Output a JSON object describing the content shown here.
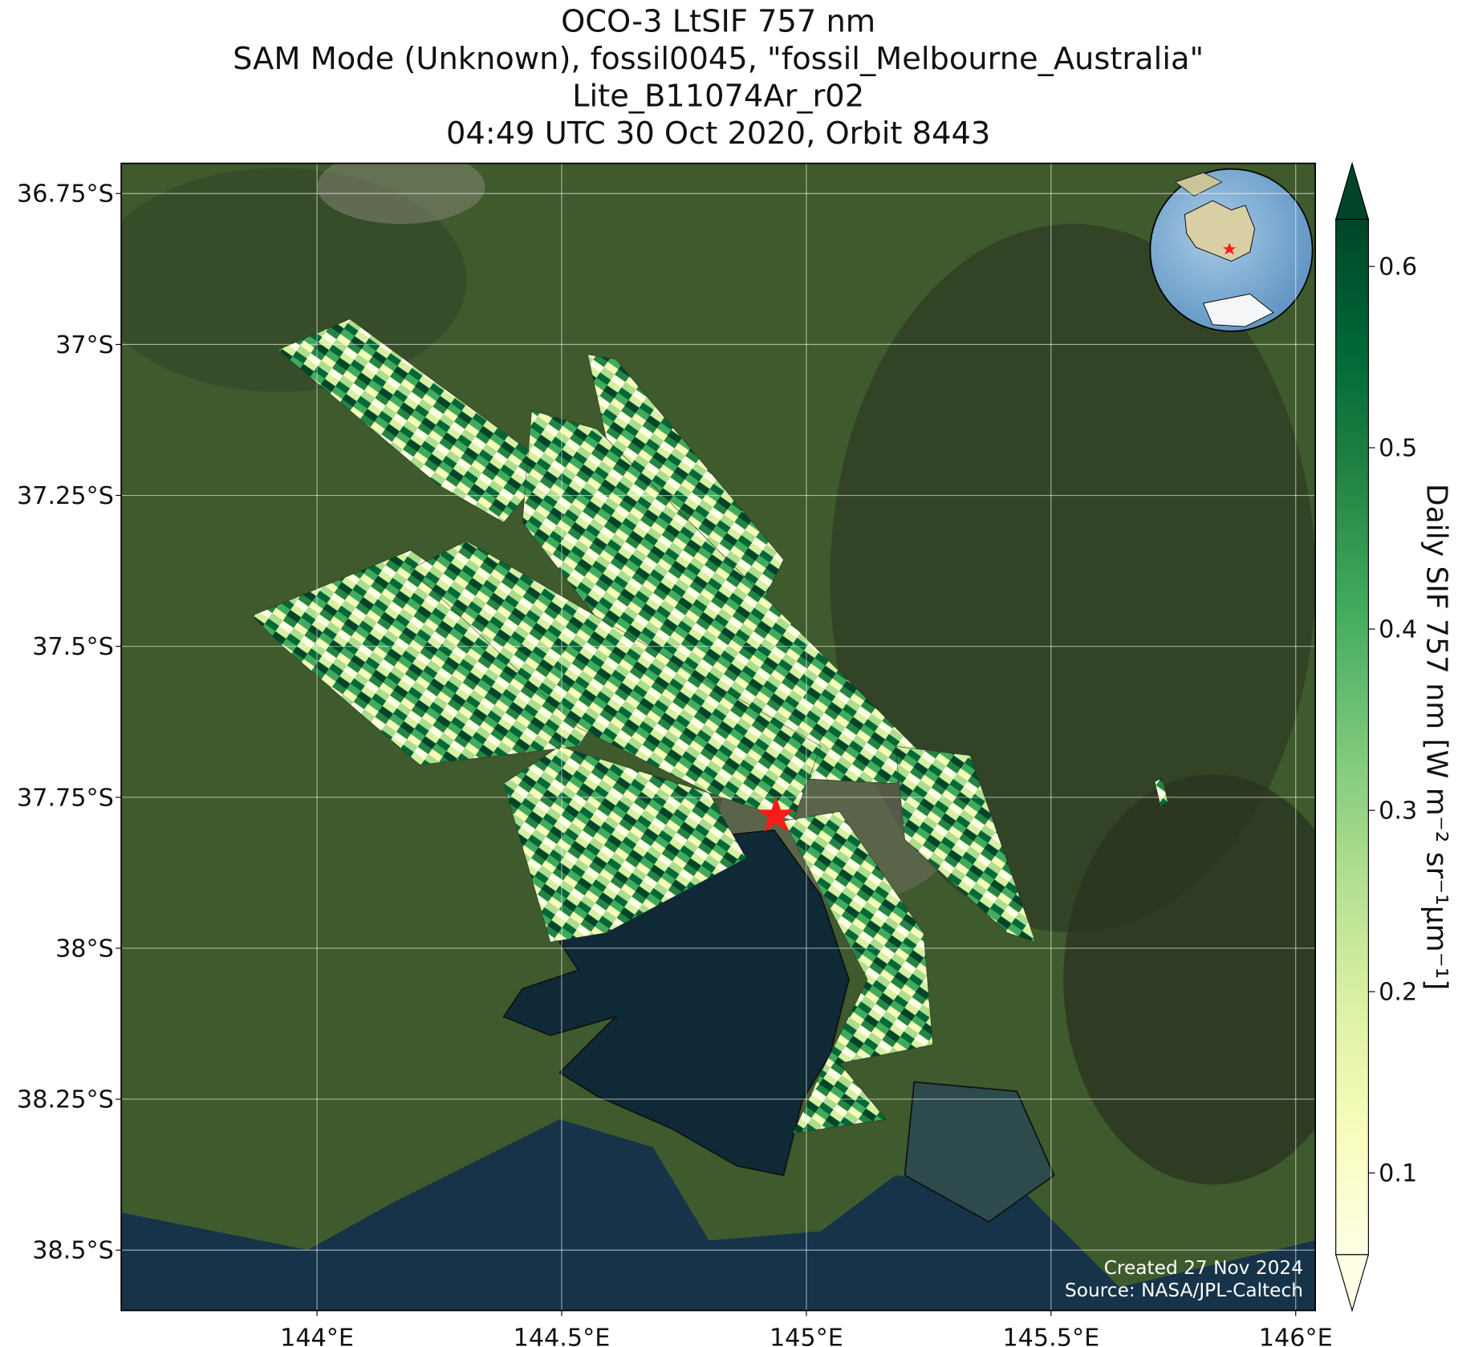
{
  "chart_data": {
    "type": "map",
    "title": [
      "OCO-3 LtSIF 757 nm",
      "SAM Mode (Unknown), fossil0045, \"fossil_Melbourne_Australia\"",
      "Lite_B11074Ar_r02",
      "04:49 UTC 30 Oct 2020, Orbit 8443"
    ],
    "xlim": [
      143.6,
      146.04
    ],
    "ylim": [
      -38.6,
      -36.7
    ],
    "xticks": [
      {
        "value": 144,
        "label": "144°E"
      },
      {
        "value": 144.5,
        "label": "144.5°E"
      },
      {
        "value": 145,
        "label": "145°E"
      },
      {
        "value": 145.5,
        "label": "145.5°E"
      },
      {
        "value": 146,
        "label": "146°E"
      }
    ],
    "yticks": [
      {
        "value": -36.75,
        "label": "36.75°S"
      },
      {
        "value": -37,
        "label": "37°S"
      },
      {
        "value": -37.25,
        "label": "37.25°S"
      },
      {
        "value": -37.5,
        "label": "37.5°S"
      },
      {
        "value": -37.75,
        "label": "37.75°S"
      },
      {
        "value": -38,
        "label": "38°S"
      },
      {
        "value": -38.25,
        "label": "38.25°S"
      },
      {
        "value": -38.5,
        "label": "38.5°S"
      }
    ],
    "grid": true,
    "colorbar": {
      "label": "Daily SIF 757 nm [W m⁻² sr⁻¹μm⁻¹]",
      "clim": [
        0.055,
        0.626
      ],
      "ticks": [
        0.1,
        0.2,
        0.3,
        0.4,
        0.5,
        0.6
      ],
      "colormap": [
        "#ffffe5",
        "#f7fcb9",
        "#d9f0a3",
        "#addd8e",
        "#78c679",
        "#41ab5d",
        "#238443",
        "#006837",
        "#004529"
      ]
    },
    "credits": [
      "Created 27 Nov 2024",
      "Source: NASA/JPL-Caltech"
    ]
  }
}
